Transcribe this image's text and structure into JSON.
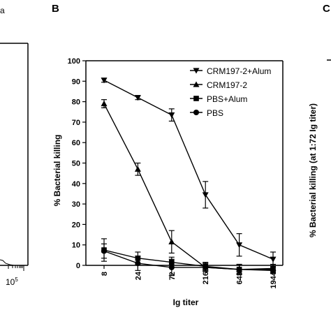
{
  "panels": {
    "a_fragment": "a",
    "b_letter": "B",
    "c_letter": "C"
  },
  "left_fragment": {
    "tick_label_base": "10",
    "tick_label_exp": "5"
  },
  "right_fragment": {
    "ylabel": "% Bacterial killing (at 1:72 Ig titer)"
  },
  "chart_data": {
    "type": "line",
    "xlabel": "Ig titer",
    "ylabel": "% Bacterial killing",
    "x_scale": "log",
    "categories": [
      "8",
      "24",
      "72",
      "216",
      "648",
      "1944"
    ],
    "ylim": [
      0,
      100
    ],
    "y_ticks": [
      0,
      10,
      20,
      30,
      40,
      50,
      60,
      70,
      80,
      90,
      100
    ],
    "grid": false,
    "legend_position": "top-right",
    "series": [
      {
        "name": "CRM197-2+Alum",
        "marker": "triangle-down",
        "values": [
          90.5,
          82,
          73.5,
          34.5,
          10,
          3
        ],
        "errors": [
          1,
          1,
          3,
          6.5,
          5.5,
          3.5
        ]
      },
      {
        "name": "CRM197-2",
        "marker": "triangle-up",
        "values": [
          79,
          47,
          11.5,
          -1,
          -2,
          -1.5
        ],
        "errors": [
          2,
          3,
          5.5,
          2,
          2.5,
          2
        ]
      },
      {
        "name": "PBS+Alum",
        "marker": "square",
        "values": [
          7.5,
          3.5,
          1.5,
          -0.5,
          -2,
          -2
        ],
        "errors": [
          5.5,
          3,
          2.5,
          2,
          2,
          2
        ]
      },
      {
        "name": "PBS",
        "marker": "circle",
        "values": [
          7,
          1,
          -1,
          -1,
          -2,
          -2.5
        ],
        "errors": [
          3.5,
          3.5,
          4,
          2,
          2.5,
          1.5
        ]
      }
    ]
  }
}
